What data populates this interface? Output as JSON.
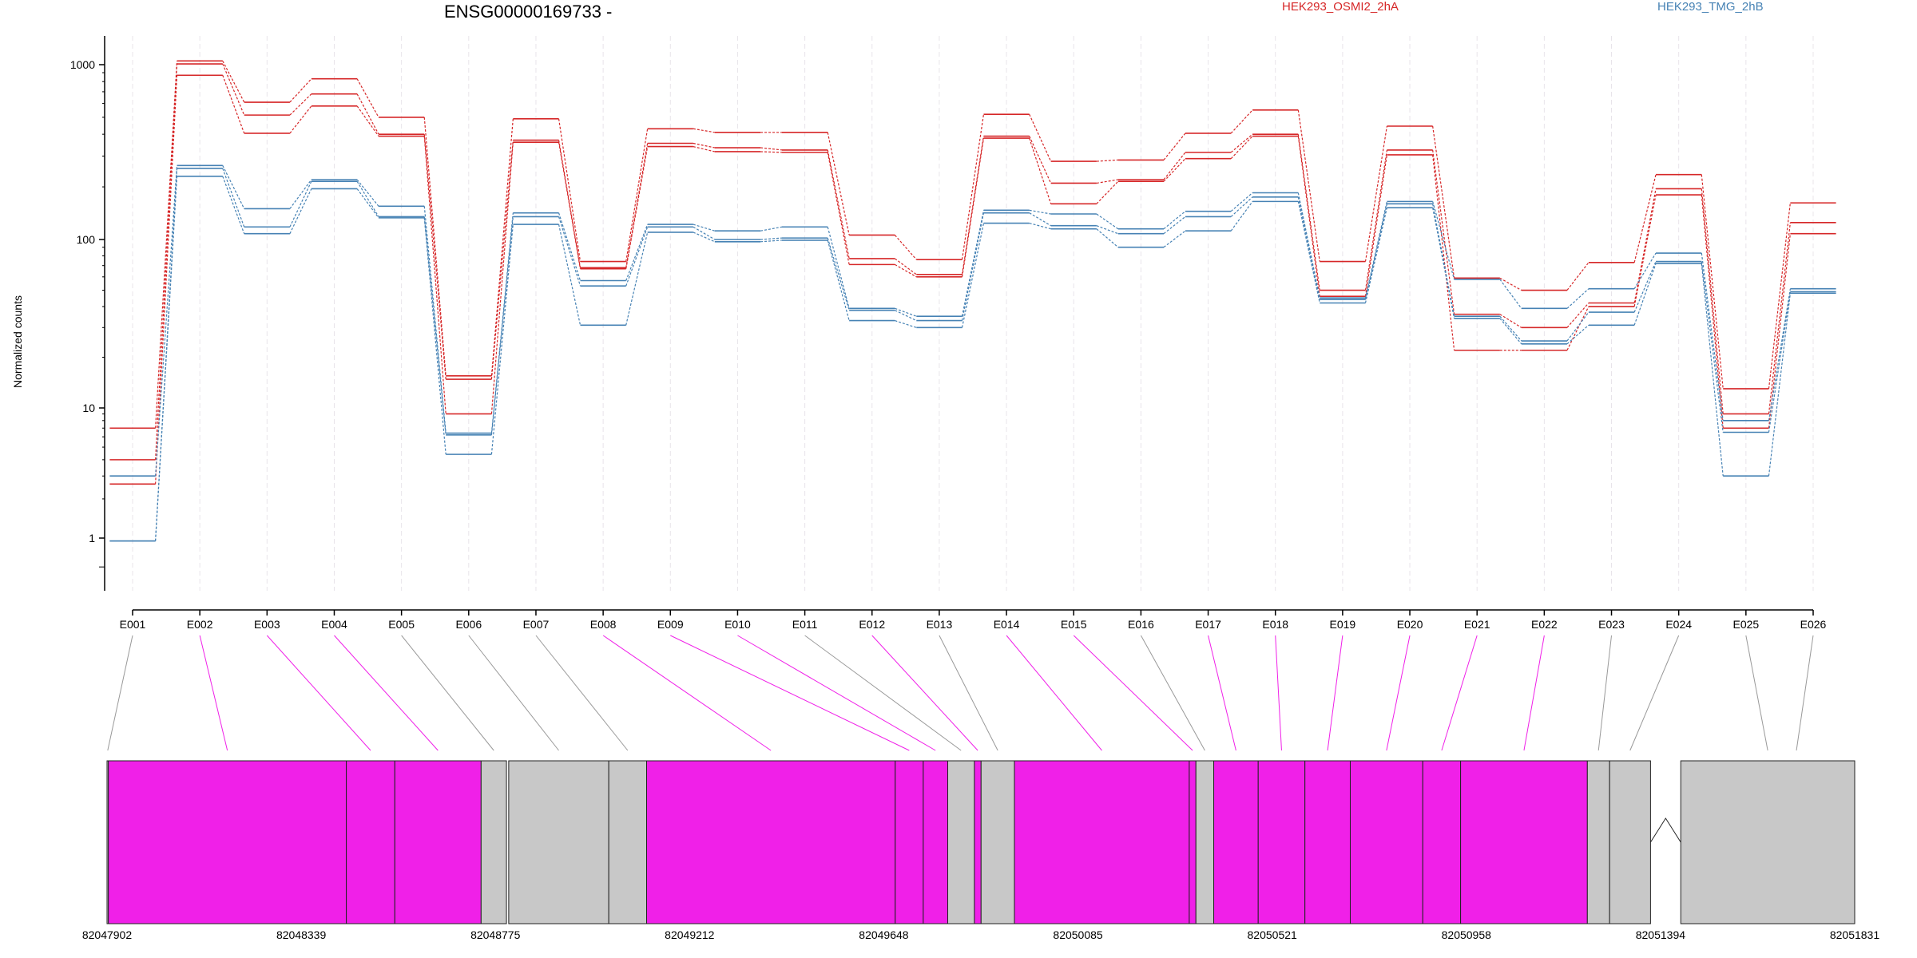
{
  "chart_data": {
    "type": "line",
    "title": "ENSG00000169733 -",
    "ylabel": "Normalized counts",
    "yscale": "log",
    "ylim": [
      0.5,
      1500
    ],
    "yticks": [
      1,
      10,
      100,
      1000
    ],
    "ytick_labels": [
      "1",
      "10",
      "100",
      "1000"
    ],
    "grid": "vertical dashed lines at each exon",
    "legend_placement": "top-right",
    "categories": [
      "E001",
      "E002",
      "E003",
      "E004",
      "E005",
      "E006",
      "E007",
      "E008",
      "E009",
      "E010",
      "E011",
      "E012",
      "E013",
      "E014",
      "E015",
      "E016",
      "E017",
      "E018",
      "E019",
      "E020",
      "E021",
      "E022",
      "E023",
      "E024",
      "E025",
      "E026"
    ],
    "series": [
      {
        "group": "HEK293_OSMI2_2hA",
        "color": "#d62728",
        "values": [
          7.0,
          1050,
          610,
          830,
          500,
          15.5,
          490,
          74,
          430,
          410,
          410,
          106,
          76,
          520,
          280,
          285,
          405,
          550,
          74,
          445,
          59,
          50,
          73,
          235,
          13,
          162
        ]
      },
      {
        "group": "HEK293_OSMI2_2hA",
        "color": "#d62728",
        "values": [
          4.0,
          1010,
          515,
          680,
          400,
          14.8,
          370,
          68,
          355,
          335,
          325,
          77,
          62,
          390,
          210,
          220,
          315,
          400,
          50,
          325,
          36,
          30,
          42,
          195,
          9,
          125
        ]
      },
      {
        "group": "HEK293_OSMI2_2hA",
        "color": "#d62728",
        "values": [
          2.6,
          870,
          405,
          580,
          390,
          9.0,
          360,
          67,
          340,
          318,
          315,
          71,
          60,
          380,
          160,
          215,
          290,
          390,
          46,
          305,
          22,
          22,
          40,
          180,
          7,
          108
        ]
      },
      {
        "group": "HEK293_TMG_2hB",
        "color": "#4682b4",
        "values": [
          3.0,
          265,
          150,
          220,
          155,
          6.4,
          142,
          57,
          122,
          112,
          118,
          39,
          35,
          147,
          140,
          115,
          145,
          185,
          45,
          165,
          58,
          39,
          51,
          83,
          8,
          51
        ]
      },
      {
        "group": "HEK293_TMG_2hB",
        "color": "#4682b4",
        "values": [
          0.95,
          255,
          118,
          215,
          135,
          6.2,
          135,
          53,
          118,
          100,
          102,
          38,
          33,
          142,
          120,
          108,
          135,
          175,
          44,
          160,
          35,
          25,
          37,
          74,
          6.5,
          49
        ]
      },
      {
        "group": "HEK293_TMG_2hB",
        "color": "#4682b4",
        "values": [
          0.95,
          230,
          108,
          195,
          133,
          4.4,
          122,
          31,
          110,
          97,
          99,
          33,
          30,
          124,
          115,
          90,
          112,
          165,
          42,
          152,
          34,
          24,
          31,
          72,
          3.0,
          48
        ]
      }
    ],
    "legend": [
      {
        "label": "HEK293_OSMI2_2hA",
        "color": "#d62728"
      },
      {
        "label": "HEK293_TMG_2hB",
        "color": "#4682b4"
      }
    ],
    "gene_model": {
      "coordinate_labels": [
        "82047902",
        "82048339",
        "82048775",
        "82049212",
        "82049648",
        "82050085",
        "82050521",
        "82050958",
        "82051394",
        "82051831"
      ],
      "start": 82047902,
      "end": 82051831,
      "tested_color": "#f020e8",
      "untested_color": "#c8c8c8",
      "segments": [
        {
          "exon": "E001",
          "start": 82047902,
          "end": 82047905,
          "tested": false
        },
        {
          "exon": "E002",
          "start": 82047905,
          "end": 82048440,
          "tested": true
        },
        {
          "exon": "E003",
          "start": 82048440,
          "end": 82048549,
          "tested": true
        },
        {
          "exon": "E004",
          "start": 82048549,
          "end": 82048743,
          "tested": true
        },
        {
          "exon": "E005",
          "start": 82048743,
          "end": 82048800,
          "tested": false
        },
        {
          "exon": "E006",
          "start": 82048805,
          "end": 82049030,
          "tested": false
        },
        {
          "exon": "E007",
          "start": 82049030,
          "end": 82049115,
          "tested": false
        },
        {
          "exon": "E008",
          "start": 82049115,
          "end": 82049674,
          "tested": true
        },
        {
          "exon": "E009",
          "start": 82049674,
          "end": 82049737,
          "tested": true
        },
        {
          "exon": "E010",
          "start": 82049737,
          "end": 82049792,
          "tested": true
        },
        {
          "exon": "E011",
          "start": 82049792,
          "end": 82049852,
          "tested": false
        },
        {
          "exon": "E012",
          "start": 82049852,
          "end": 82049867,
          "tested": true
        },
        {
          "exon": "E013",
          "start": 82049867,
          "end": 82049942,
          "tested": false
        },
        {
          "exon": "E014",
          "start": 82049942,
          "end": 82050335,
          "tested": true
        },
        {
          "exon": "E015",
          "start": 82050335,
          "end": 82050350,
          "tested": true
        },
        {
          "exon": "E016",
          "start": 82050350,
          "end": 82050390,
          "tested": false
        },
        {
          "exon": "E017",
          "start": 82050390,
          "end": 82050490,
          "tested": true
        },
        {
          "exon": "E018",
          "start": 82050490,
          "end": 82050595,
          "tested": true
        },
        {
          "exon": "E019",
          "start": 82050595,
          "end": 82050697,
          "tested": true
        },
        {
          "exon": "E020",
          "start": 82050697,
          "end": 82050860,
          "tested": true
        },
        {
          "exon": "E021",
          "start": 82050860,
          "end": 82050945,
          "tested": true
        },
        {
          "exon": "E022",
          "start": 82050945,
          "end": 82051230,
          "tested": true
        },
        {
          "exon": "E023",
          "start": 82051230,
          "end": 82051280,
          "tested": false
        },
        {
          "exon": "E024",
          "start": 82051280,
          "end": 82051372,
          "tested": false
        },
        {
          "exon": "E025",
          "start": 82051440,
          "end": 82051831,
          "tested": false
        }
      ],
      "intron": {
        "start": 82051372,
        "end": 82051440
      }
    }
  }
}
